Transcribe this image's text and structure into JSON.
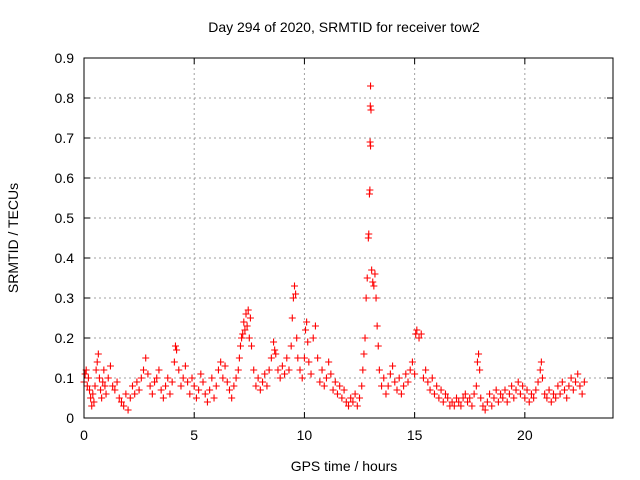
{
  "chart_data": {
    "type": "scatter",
    "title": "Day 294 of 2020, SRMTID for receiver tow2",
    "xlabel": "GPS time / hours",
    "ylabel": "SRMTID / TECUs",
    "xlim": [
      0,
      24
    ],
    "ylim": [
      0,
      0.9
    ],
    "xticks": [
      0,
      5,
      10,
      15,
      20
    ],
    "yticks": [
      0,
      0.1,
      0.2,
      0.3,
      0.4,
      0.5,
      0.6,
      0.7,
      0.8,
      0.9
    ],
    "x_tick_labels": [
      "0",
      "5",
      "10",
      "15",
      "20"
    ],
    "y_tick_labels": [
      "0",
      "0.1",
      "0.2",
      "0.3",
      "0.4",
      "0.5",
      "0.6",
      "0.7",
      "0.8",
      "0.9"
    ],
    "grid": true,
    "marker": "+",
    "marker_color": "#ff0000",
    "series": [
      {
        "name": "tow2",
        "points": [
          [
            0.0,
            0.09
          ],
          [
            0.05,
            0.11
          ],
          [
            0.1,
            0.12
          ],
          [
            0.15,
            0.08
          ],
          [
            0.2,
            0.1
          ],
          [
            0.25,
            0.07
          ],
          [
            0.3,
            0.05
          ],
          [
            0.35,
            0.03
          ],
          [
            0.4,
            0.06
          ],
          [
            0.45,
            0.04
          ],
          [
            0.5,
            0.08
          ],
          [
            0.55,
            0.12
          ],
          [
            0.6,
            0.14
          ],
          [
            0.65,
            0.16
          ],
          [
            0.7,
            0.1
          ],
          [
            0.75,
            0.07
          ],
          [
            0.8,
            0.05
          ],
          [
            0.85,
            0.09
          ],
          [
            0.9,
            0.12
          ],
          [
            0.95,
            0.08
          ],
          [
            1.0,
            0.06
          ],
          [
            1.1,
            0.1
          ],
          [
            1.2,
            0.13
          ],
          [
            1.3,
            0.08
          ],
          [
            1.4,
            0.07
          ],
          [
            1.5,
            0.09
          ],
          [
            1.6,
            0.05
          ],
          [
            1.7,
            0.04
          ],
          [
            1.8,
            0.03
          ],
          [
            1.9,
            0.06
          ],
          [
            2.0,
            0.02
          ],
          [
            2.1,
            0.05
          ],
          [
            2.2,
            0.08
          ],
          [
            2.3,
            0.06
          ],
          [
            2.4,
            0.09
          ],
          [
            2.5,
            0.07
          ],
          [
            2.6,
            0.1
          ],
          [
            2.7,
            0.12
          ],
          [
            2.8,
            0.15
          ],
          [
            2.9,
            0.11
          ],
          [
            3.0,
            0.08
          ],
          [
            3.1,
            0.06
          ],
          [
            3.2,
            0.09
          ],
          [
            3.3,
            0.1
          ],
          [
            3.4,
            0.12
          ],
          [
            3.5,
            0.07
          ],
          [
            3.6,
            0.05
          ],
          [
            3.7,
            0.08
          ],
          [
            3.8,
            0.1
          ],
          [
            3.9,
            0.06
          ],
          [
            4.0,
            0.09
          ],
          [
            4.1,
            0.14
          ],
          [
            4.15,
            0.18
          ],
          [
            4.2,
            0.17
          ],
          [
            4.3,
            0.12
          ],
          [
            4.4,
            0.08
          ],
          [
            4.5,
            0.1
          ],
          [
            4.6,
            0.13
          ],
          [
            4.7,
            0.09
          ],
          [
            4.8,
            0.06
          ],
          [
            4.9,
            0.1
          ],
          [
            5.0,
            0.08
          ],
          [
            5.1,
            0.05
          ],
          [
            5.2,
            0.07
          ],
          [
            5.3,
            0.11
          ],
          [
            5.4,
            0.09
          ],
          [
            5.5,
            0.06
          ],
          [
            5.6,
            0.04
          ],
          [
            5.7,
            0.07
          ],
          [
            5.8,
            0.1
          ],
          [
            5.9,
            0.05
          ],
          [
            6.0,
            0.08
          ],
          [
            6.1,
            0.12
          ],
          [
            6.2,
            0.14
          ],
          [
            6.3,
            0.1
          ],
          [
            6.4,
            0.13
          ],
          [
            6.5,
            0.09
          ],
          [
            6.6,
            0.07
          ],
          [
            6.7,
            0.05
          ],
          [
            6.8,
            0.08
          ],
          [
            6.9,
            0.1
          ],
          [
            7.0,
            0.12
          ],
          [
            7.05,
            0.15
          ],
          [
            7.1,
            0.18
          ],
          [
            7.15,
            0.2
          ],
          [
            7.2,
            0.21
          ],
          [
            7.25,
            0.24
          ],
          [
            7.3,
            0.22
          ],
          [
            7.35,
            0.26
          ],
          [
            7.4,
            0.23
          ],
          [
            7.45,
            0.27
          ],
          [
            7.5,
            0.2
          ],
          [
            7.55,
            0.25
          ],
          [
            7.6,
            0.18
          ],
          [
            7.7,
            0.12
          ],
          [
            7.8,
            0.08
          ],
          [
            7.9,
            0.1
          ],
          [
            8.0,
            0.07
          ],
          [
            8.1,
            0.09
          ],
          [
            8.2,
            0.11
          ],
          [
            8.3,
            0.08
          ],
          [
            8.4,
            0.12
          ],
          [
            8.5,
            0.15
          ],
          [
            8.6,
            0.19
          ],
          [
            8.65,
            0.17
          ],
          [
            8.7,
            0.16
          ],
          [
            8.8,
            0.12
          ],
          [
            8.9,
            0.1
          ],
          [
            9.0,
            0.13
          ],
          [
            9.1,
            0.11
          ],
          [
            9.2,
            0.15
          ],
          [
            9.3,
            0.12
          ],
          [
            9.4,
            0.18
          ],
          [
            9.45,
            0.25
          ],
          [
            9.5,
            0.3
          ],
          [
            9.55,
            0.33
          ],
          [
            9.6,
            0.31
          ],
          [
            9.65,
            0.2
          ],
          [
            9.7,
            0.15
          ],
          [
            9.8,
            0.12
          ],
          [
            9.9,
            0.1
          ],
          [
            10.0,
            0.15
          ],
          [
            10.05,
            0.22
          ],
          [
            10.1,
            0.24
          ],
          [
            10.15,
            0.19
          ],
          [
            10.2,
            0.14
          ],
          [
            10.3,
            0.11
          ],
          [
            10.4,
            0.2
          ],
          [
            10.5,
            0.23
          ],
          [
            10.6,
            0.15
          ],
          [
            10.7,
            0.09
          ],
          [
            10.8,
            0.12
          ],
          [
            10.9,
            0.08
          ],
          [
            11.0,
            0.1
          ],
          [
            11.1,
            0.14
          ],
          [
            11.2,
            0.11
          ],
          [
            11.3,
            0.07
          ],
          [
            11.4,
            0.09
          ],
          [
            11.5,
            0.06
          ],
          [
            11.6,
            0.08
          ],
          [
            11.7,
            0.05
          ],
          [
            11.8,
            0.07
          ],
          [
            11.9,
            0.04
          ],
          [
            12.0,
            0.03
          ],
          [
            12.1,
            0.05
          ],
          [
            12.2,
            0.04
          ],
          [
            12.3,
            0.06
          ],
          [
            12.4,
            0.03
          ],
          [
            12.5,
            0.05
          ],
          [
            12.6,
            0.08
          ],
          [
            12.65,
            0.12
          ],
          [
            12.7,
            0.16
          ],
          [
            12.75,
            0.2
          ],
          [
            12.8,
            0.3
          ],
          [
            12.85,
            0.35
          ],
          [
            12.9,
            0.45
          ],
          [
            12.92,
            0.46
          ],
          [
            12.95,
            0.56
          ],
          [
            12.97,
            0.57
          ],
          [
            13.0,
            0.68
          ],
          [
            12.98,
            0.69
          ],
          [
            13.02,
            0.77
          ],
          [
            12.99,
            0.78
          ],
          [
            13.0,
            0.83
          ],
          [
            13.05,
            0.37
          ],
          [
            13.1,
            0.34
          ],
          [
            13.15,
            0.33
          ],
          [
            13.2,
            0.36
          ],
          [
            13.25,
            0.3
          ],
          [
            13.3,
            0.23
          ],
          [
            13.35,
            0.18
          ],
          [
            13.4,
            0.12
          ],
          [
            13.5,
            0.08
          ],
          [
            13.6,
            0.1
          ],
          [
            13.7,
            0.06
          ],
          [
            13.8,
            0.08
          ],
          [
            13.9,
            0.11
          ],
          [
            14.0,
            0.13
          ],
          [
            14.1,
            0.09
          ],
          [
            14.2,
            0.07
          ],
          [
            14.3,
            0.1
          ],
          [
            14.4,
            0.06
          ],
          [
            14.5,
            0.08
          ],
          [
            14.6,
            0.11
          ],
          [
            14.7,
            0.09
          ],
          [
            14.8,
            0.12
          ],
          [
            14.9,
            0.14
          ],
          [
            15.0,
            0.11
          ],
          [
            15.05,
            0.21
          ],
          [
            15.1,
            0.22
          ],
          [
            15.2,
            0.2
          ],
          [
            15.3,
            0.21
          ],
          [
            15.4,
            0.1
          ],
          [
            15.5,
            0.12
          ],
          [
            15.6,
            0.09
          ],
          [
            15.7,
            0.07
          ],
          [
            15.8,
            0.1
          ],
          [
            15.9,
            0.06
          ],
          [
            16.0,
            0.08
          ],
          [
            16.1,
            0.05
          ],
          [
            16.2,
            0.07
          ],
          [
            16.3,
            0.04
          ],
          [
            16.4,
            0.06
          ],
          [
            16.5,
            0.05
          ],
          [
            16.6,
            0.03
          ],
          [
            16.7,
            0.04
          ],
          [
            16.8,
            0.03
          ],
          [
            16.9,
            0.05
          ],
          [
            17.0,
            0.04
          ],
          [
            17.1,
            0.03
          ],
          [
            17.2,
            0.05
          ],
          [
            17.3,
            0.06
          ],
          [
            17.4,
            0.04
          ],
          [
            17.5,
            0.05
          ],
          [
            17.6,
            0.03
          ],
          [
            17.7,
            0.06
          ],
          [
            17.8,
            0.08
          ],
          [
            17.85,
            0.14
          ],
          [
            17.9,
            0.16
          ],
          [
            17.95,
            0.12
          ],
          [
            18.0,
            0.05
          ],
          [
            18.1,
            0.03
          ],
          [
            18.2,
            0.02
          ],
          [
            18.3,
            0.04
          ],
          [
            18.4,
            0.06
          ],
          [
            18.5,
            0.03
          ],
          [
            18.6,
            0.05
          ],
          [
            18.7,
            0.07
          ],
          [
            18.8,
            0.04
          ],
          [
            18.9,
            0.06
          ],
          [
            19.0,
            0.05
          ],
          [
            19.1,
            0.07
          ],
          [
            19.2,
            0.04
          ],
          [
            19.3,
            0.06
          ],
          [
            19.4,
            0.08
          ],
          [
            19.5,
            0.05
          ],
          [
            19.6,
            0.07
          ],
          [
            19.7,
            0.09
          ],
          [
            19.8,
            0.06
          ],
          [
            19.9,
            0.08
          ],
          [
            20.0,
            0.05
          ],
          [
            20.1,
            0.07
          ],
          [
            20.2,
            0.04
          ],
          [
            20.3,
            0.06
          ],
          [
            20.4,
            0.05
          ],
          [
            20.5,
            0.07
          ],
          [
            20.6,
            0.09
          ],
          [
            20.7,
            0.12
          ],
          [
            20.75,
            0.14
          ],
          [
            20.8,
            0.1
          ],
          [
            20.9,
            0.06
          ],
          [
            21.0,
            0.05
          ],
          [
            21.1,
            0.07
          ],
          [
            21.2,
            0.04
          ],
          [
            21.3,
            0.06
          ],
          [
            21.4,
            0.05
          ],
          [
            21.5,
            0.08
          ],
          [
            21.6,
            0.06
          ],
          [
            21.7,
            0.09
          ],
          [
            21.8,
            0.07
          ],
          [
            21.9,
            0.05
          ],
          [
            22.0,
            0.08
          ],
          [
            22.1,
            0.1
          ],
          [
            22.2,
            0.07
          ],
          [
            22.3,
            0.09
          ],
          [
            22.4,
            0.11
          ],
          [
            22.5,
            0.08
          ],
          [
            22.6,
            0.06
          ],
          [
            22.7,
            0.09
          ]
        ]
      }
    ]
  }
}
